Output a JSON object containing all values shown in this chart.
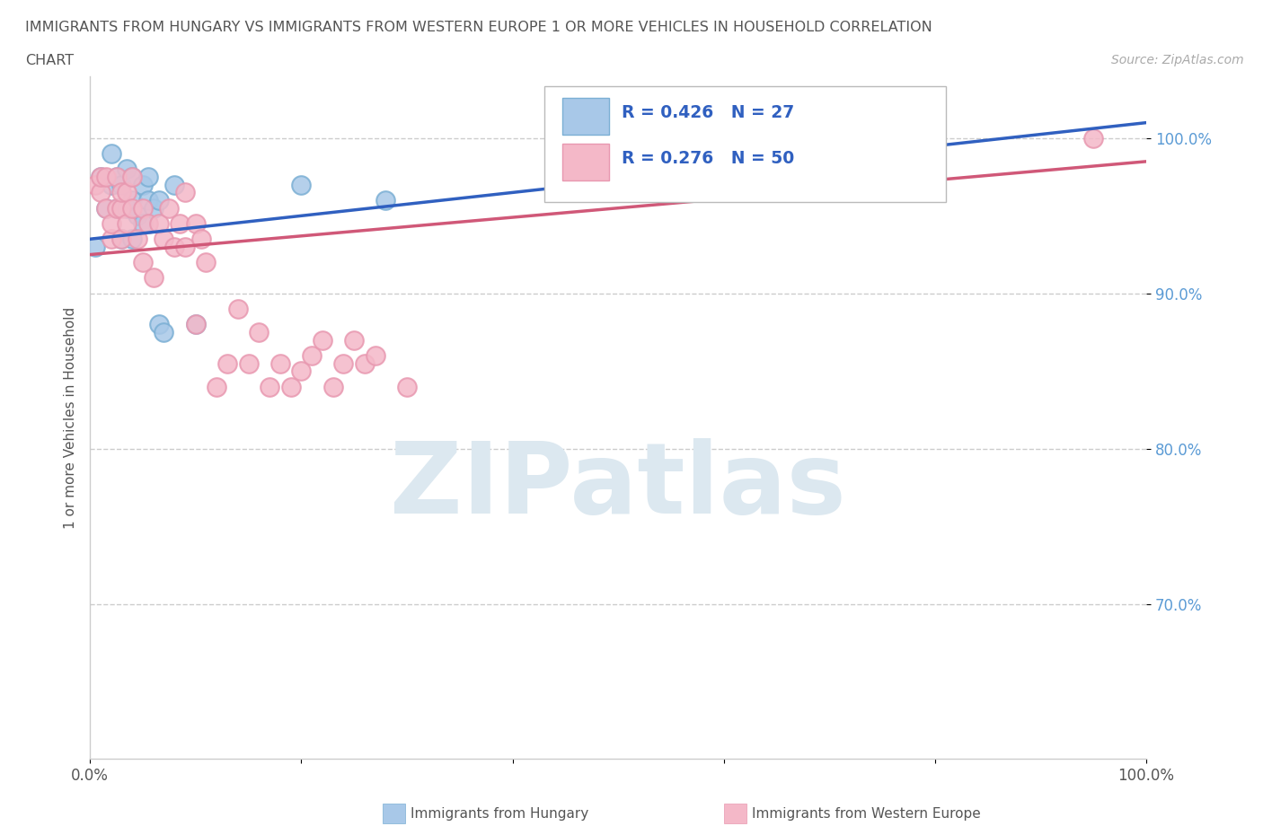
{
  "title_line1": "IMMIGRANTS FROM HUNGARY VS IMMIGRANTS FROM WESTERN EUROPE 1 OR MORE VEHICLES IN HOUSEHOLD CORRELATION",
  "title_line2": "CHART",
  "source": "Source: ZipAtlas.com",
  "ylabel": "1 or more Vehicles in Household",
  "legend_label_blue": "Immigrants from Hungary",
  "legend_label_pink": "Immigrants from Western Europe",
  "R_blue": 0.426,
  "N_blue": 27,
  "R_pink": 0.276,
  "N_pink": 50,
  "xlim": [
    0.0,
    1.0
  ],
  "ylim": [
    0.6,
    1.04
  ],
  "y_ticks": [
    0.7,
    0.8,
    0.9,
    1.0
  ],
  "y_tick_labels": [
    "70.0%",
    "80.0%",
    "90.0%",
    "100.0%"
  ],
  "grid_color": "#cccccc",
  "bg_color": "#ffffff",
  "blue_color": "#a8c8e8",
  "pink_color": "#f4b8c8",
  "blue_edge_color": "#7bafd4",
  "pink_edge_color": "#e898b0",
  "blue_line_color": "#3060c0",
  "pink_line_color": "#d05878",
  "watermark_text": "ZIPatlas",
  "watermark_color": "#dce8f0",
  "hungary_x": [
    0.005,
    0.01,
    0.015,
    0.02,
    0.02,
    0.025,
    0.025,
    0.03,
    0.03,
    0.035,
    0.035,
    0.04,
    0.04,
    0.04,
    0.045,
    0.05,
    0.05,
    0.055,
    0.055,
    0.06,
    0.065,
    0.065,
    0.07,
    0.08,
    0.1,
    0.2,
    0.28
  ],
  "hungary_y": [
    0.93,
    0.975,
    0.955,
    0.97,
    0.99,
    0.955,
    0.975,
    0.935,
    0.97,
    0.955,
    0.98,
    0.935,
    0.96,
    0.975,
    0.95,
    0.945,
    0.97,
    0.96,
    0.975,
    0.955,
    0.88,
    0.96,
    0.875,
    0.97,
    0.88,
    0.97,
    0.96
  ],
  "western_x": [
    0.005,
    0.01,
    0.01,
    0.015,
    0.015,
    0.02,
    0.02,
    0.025,
    0.025,
    0.03,
    0.03,
    0.03,
    0.035,
    0.035,
    0.04,
    0.04,
    0.045,
    0.05,
    0.05,
    0.055,
    0.06,
    0.065,
    0.07,
    0.075,
    0.08,
    0.085,
    0.09,
    0.09,
    0.1,
    0.1,
    0.105,
    0.11,
    0.12,
    0.13,
    0.14,
    0.15,
    0.16,
    0.17,
    0.18,
    0.19,
    0.2,
    0.21,
    0.22,
    0.23,
    0.24,
    0.25,
    0.26,
    0.27,
    0.3,
    0.95
  ],
  "western_y": [
    0.97,
    0.965,
    0.975,
    0.955,
    0.975,
    0.935,
    0.945,
    0.955,
    0.975,
    0.935,
    0.955,
    0.965,
    0.945,
    0.965,
    0.955,
    0.975,
    0.935,
    0.92,
    0.955,
    0.945,
    0.91,
    0.945,
    0.935,
    0.955,
    0.93,
    0.945,
    0.93,
    0.965,
    0.88,
    0.945,
    0.935,
    0.92,
    0.84,
    0.855,
    0.89,
    0.855,
    0.875,
    0.84,
    0.855,
    0.84,
    0.85,
    0.86,
    0.87,
    0.84,
    0.855,
    0.87,
    0.855,
    0.86,
    0.84,
    1.0
  ],
  "blue_trendline_x": [
    0.0,
    1.0
  ],
  "blue_trendline_y": [
    0.935,
    1.01
  ],
  "pink_trendline_x": [
    0.0,
    1.0
  ],
  "pink_trendline_y": [
    0.925,
    0.985
  ]
}
